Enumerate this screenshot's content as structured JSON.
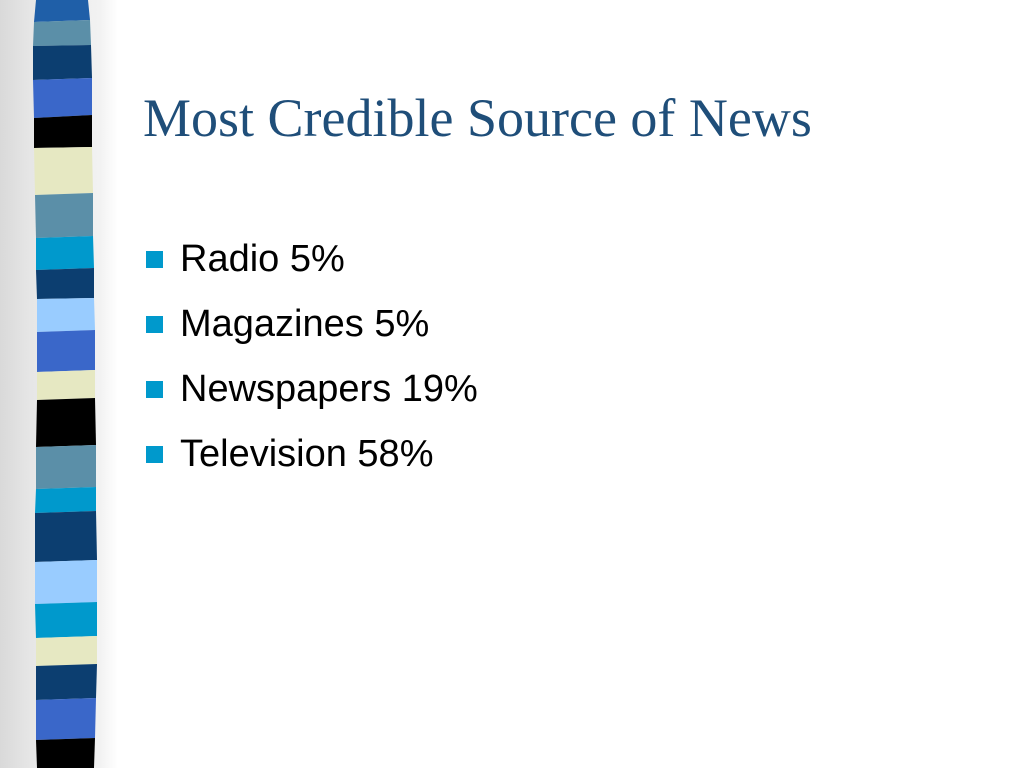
{
  "slide": {
    "title": "Most Credible Source of News",
    "bullets": [
      {
        "label": "Radio 5%"
      },
      {
        "label": "Magazines 5%"
      },
      {
        "label": "Newspapers 19%"
      },
      {
        "label": "Television 58%"
      }
    ]
  },
  "theme": {
    "title_color": "#1f4e79",
    "bullet_color": "#0099cc",
    "bar_colors": [
      "#1f5fa8",
      "#5b8fa8",
      "#0c3e70",
      "#3a67c9",
      "#000000",
      "#e6e8c2",
      "#0099cc",
      "#99ccff"
    ]
  }
}
